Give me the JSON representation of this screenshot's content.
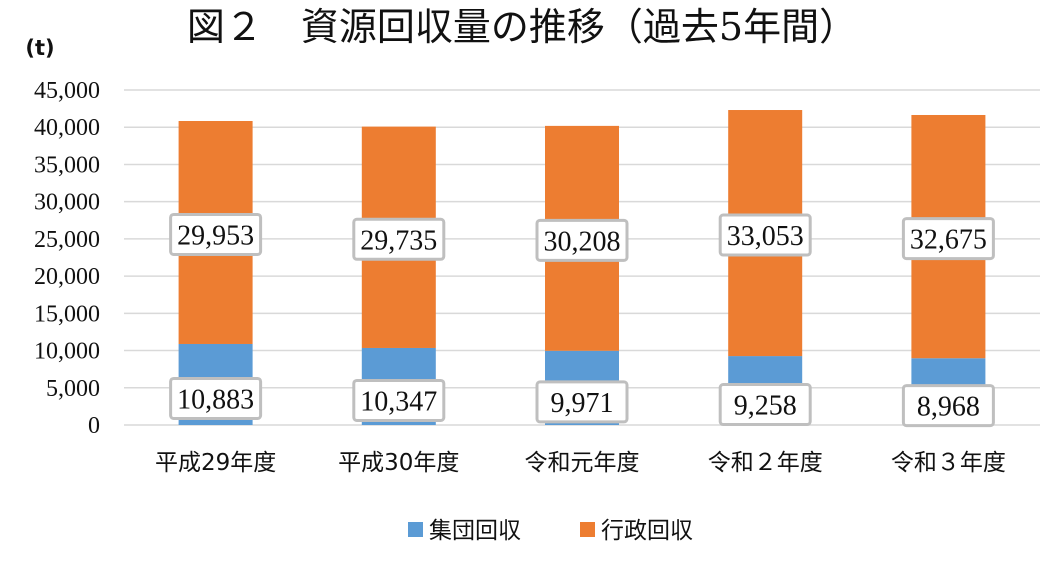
{
  "chart_data": {
    "type": "bar",
    "stacked": true,
    "title": "図２　資源回収量の推移（過去5年間）",
    "unit_label": "(t)",
    "xlabel": "",
    "ylabel": "",
    "categories": [
      "平成29年度",
      "平成30年度",
      "令和元年度",
      "令和２年度",
      "令和３年度"
    ],
    "series": [
      {
        "name": "集団回収",
        "values": [
          10883,
          10347,
          9971,
          9258,
          8968
        ],
        "color": "#5b9bd5"
      },
      {
        "name": "行政回収",
        "values": [
          29953,
          29735,
          30208,
          33053,
          32675
        ],
        "color": "#ed7d31"
      }
    ],
    "data_labels": [
      [
        "10,883",
        "10,347",
        "9,971",
        "9,258",
        "8,968"
      ],
      [
        "29,953",
        "29,735",
        "30,208",
        "33,053",
        "32,675"
      ]
    ],
    "ylim": [
      0,
      45000
    ],
    "yticks": [
      0,
      5000,
      10000,
      15000,
      20000,
      25000,
      30000,
      35000,
      40000,
      45000
    ],
    "ytick_labels": [
      "0",
      "5,000",
      "10,000",
      "15,000",
      "20,000",
      "25,000",
      "30,000",
      "35,000",
      "40,000",
      "45,000"
    ],
    "grid": true,
    "legend_position": "bottom"
  }
}
